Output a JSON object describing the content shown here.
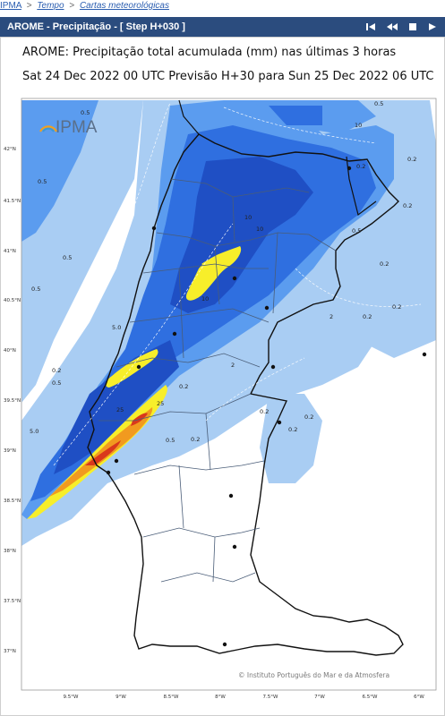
{
  "breadcrumb": {
    "items": [
      "IPMA",
      "Tempo",
      "Cartas meteorológicas"
    ],
    "separator": ">"
  },
  "panel": {
    "title": "AROME - Precipitação - [ Step H+030 ]",
    "controls": [
      "first-icon",
      "previous-icon",
      "stop-icon",
      "next-icon"
    ]
  },
  "map": {
    "title_line1": "AROME: Precipitação total acumulada (mm) nas últimas 3 horas",
    "title_line2": "Sat 24 Dec 2022 00 UTC Previsão H+30 para Sun 25 Dec 2022 06 UTC",
    "logo_text": "IPMA",
    "credit": "© Instituto Português do Mar e da Atmosfera",
    "lat_labels": [
      "42°N",
      "41.5°N",
      "41°N",
      "40.5°N",
      "40°N",
      "39.5°N",
      "39°N",
      "38.5°N",
      "38°N",
      "37.5°N",
      "37°N"
    ],
    "lon_labels": [
      "9.5°W",
      "9°W",
      "8.5°W",
      "8°W",
      "7.5°W",
      "7°W",
      "6.5°W",
      "6°W"
    ],
    "contour_labels": [
      "0.5",
      "0.5",
      "10",
      "0.5",
      "10",
      "0.2",
      "10",
      "0.5",
      "0.2",
      "0.5",
      "0.2",
      "0.2",
      "5.0",
      "2",
      "2",
      "0.2",
      "0.2",
      "25",
      "10",
      "0.5",
      "0.2",
      "0.2",
      "0.2",
      "5.0",
      "0.2",
      "0.5",
      "0.5",
      "0.2",
      "25",
      "0.2"
    ],
    "colors": {
      "light_blue": "#a9cdf3",
      "mid_blue": "#5b9cef",
      "blue": "#2f6fe0",
      "dark_blue": "#1f4fc4",
      "yellow": "#f7ee2a",
      "orange": "#f19a1f",
      "red": "#d9381c"
    }
  }
}
